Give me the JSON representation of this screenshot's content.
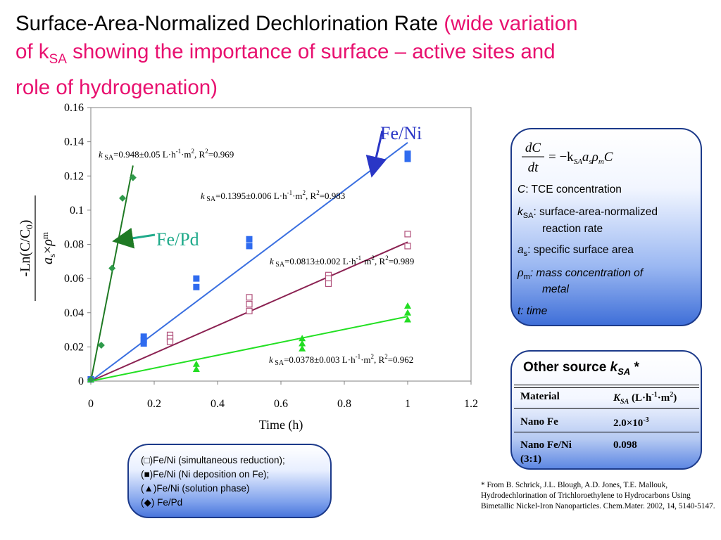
{
  "title": {
    "main": "Surface-Area-Normalized Dechlorination Rate",
    "pink_open": "(wide variation",
    "pink_of_k": "of k",
    "pink_sub": "SA",
    "pink_rest": "showing the importance of surface – active sites and",
    "pink_line3": "role of hydrogenation)"
  },
  "chart_data": {
    "type": "scatter",
    "xlabel": "Time (h)",
    "ylabel": "-Ln(C/C0) / a s×ρm",
    "xlim": [
      0,
      1.2
    ],
    "ylim": [
      0,
      0.16
    ],
    "xticks": [
      "0",
      "0.2",
      "0.4",
      "0.6",
      "0.8",
      "1",
      "1.2"
    ],
    "yticks": [
      "0",
      "0.02",
      "0.04",
      "0.06",
      "0.08",
      "0.1",
      "0.12",
      "0.14",
      "0.16"
    ],
    "grid": false,
    "series": [
      {
        "name": "Fe/Ni (simultaneous reduction)",
        "marker": "open-square",
        "color": "#b0507a",
        "line_color": "#8b2252",
        "slope": 0.0813,
        "points": [
          [
            0,
            0.001
          ],
          [
            0.25,
            0.027
          ],
          [
            0.25,
            0.025
          ],
          [
            0.25,
            0.023
          ],
          [
            0.5,
            0.049
          ],
          [
            0.5,
            0.045
          ],
          [
            0.5,
            0.041
          ],
          [
            0.75,
            0.062
          ],
          [
            0.75,
            0.06
          ],
          [
            0.75,
            0.057
          ],
          [
            1.0,
            0.086
          ],
          [
            1.0,
            0.079
          ]
        ],
        "annotation": {
          "k": "k",
          "sub": "SA",
          "text": "=0.0813±0.002 L·h",
          "sup1": "-1",
          "mid": "·m",
          "sup2": "2",
          "end": ", R",
          "sup3": "2",
          "tail": "=0.989"
        }
      },
      {
        "name": "Fe/Ni (Ni deposition on Fe)",
        "marker": "filled-square",
        "color": "#2f6bef",
        "line_color": "#3a6fe0",
        "slope": 0.1395,
        "points": [
          [
            0,
            0.001
          ],
          [
            0.167,
            0.026
          ],
          [
            0.167,
            0.024
          ],
          [
            0.167,
            0.022
          ],
          [
            0.333,
            0.06
          ],
          [
            0.333,
            0.055
          ],
          [
            0.5,
            0.083
          ],
          [
            0.5,
            0.079
          ],
          [
            1.0,
            0.133
          ],
          [
            1.0,
            0.13
          ]
        ],
        "annotation": {
          "k": "k",
          "sub": "SA",
          "text": "=0.1395±0.006 L·h",
          "sup1": "-1",
          "mid": "·m",
          "sup2": "2",
          "end": ", R",
          "sup3": "2",
          "tail": "=0.983"
        }
      },
      {
        "name": "Fe/Ni (solution phase)",
        "marker": "filled-triangle",
        "color": "#22dd22",
        "line_color": "#22e022",
        "slope": 0.0378,
        "points": [
          [
            0,
            0.001
          ],
          [
            0.333,
            0.01
          ],
          [
            0.333,
            0.007
          ],
          [
            0.667,
            0.025
          ],
          [
            0.667,
            0.022
          ],
          [
            0.667,
            0.019
          ],
          [
            1.0,
            0.044
          ],
          [
            1.0,
            0.04
          ],
          [
            1.0,
            0.036
          ]
        ],
        "annotation": {
          "k": "k",
          "sub": "SA",
          "text": "=0.0378±0.003 L·h",
          "sup1": "-1",
          "mid": "·m",
          "sup2": "2",
          "end": ", R",
          "sup3": "2",
          "tail": "=0.962"
        }
      },
      {
        "name": "Fe/Pd",
        "marker": "filled-diamond",
        "color": "#2e9a4a",
        "line_color": "#1f7a24",
        "slope": 0.948,
        "points": [
          [
            0,
            0.001
          ],
          [
            0.033,
            0.021
          ],
          [
            0.067,
            0.066
          ],
          [
            0.1,
            0.107
          ],
          [
            0.133,
            0.119
          ]
        ],
        "annotation": {
          "k": "k",
          "sub": "SA",
          "text": "=0.948±0.05 L·h",
          "sup1": "-1",
          "mid": "·m",
          "sup2": "2",
          "end": ", R",
          "sup3": "2",
          "tail": "=0.969"
        }
      }
    ],
    "callouts": [
      {
        "label": "Fe/Ni",
        "color": "#2a36c6"
      },
      {
        "label": "Fe/Pd",
        "color": "#1faa8a"
      }
    ]
  },
  "ylabel_parts": {
    "numerator": "-Ln(C/C",
    "num_sub": "0",
    "num_close": ")",
    "den_a": "a",
    "den_s": "s",
    "den_times": "×",
    "den_rho": "ρ",
    "den_m": "m"
  },
  "equation_panel": {
    "lhs_num": "dC",
    "lhs_den": "dt",
    "rhs": "= −k",
    "rhs_sub1": "SA",
    "rhs_a": "a",
    "rhs_sub2": "s",
    "rhs_rho": "ρ",
    "rhs_sub3": "m",
    "rhs_c": "C",
    "c_sym": "C",
    "c_def": ": TCE concentration",
    "k_sym": "k",
    "k_sub": "SA",
    "k_def1": ": surface-area-normalized",
    "k_def2": "reaction rate",
    "a_sym": "a",
    "a_sub": "s",
    "a_def": ": specific surface area",
    "rho_sym": "ρ",
    "rho_sub": "m",
    "rho_def1": ": mass concentration of",
    "rho_def2": "metal",
    "t_def": "t: time"
  },
  "legend": {
    "row1_sym": "□",
    "row1": ")Fe/Ni (simultaneous reduction);",
    "row2_sym": "■",
    "row2": ")Fe/Ni (Ni deposition on Fe);",
    "row3_sym": "▲",
    "row3": ")Fe/Ni (solution phase)",
    "row4_sym": "◆",
    "row4": ") Fe/Pd",
    "open": "("
  },
  "other_source": {
    "heading": "Other source",
    "heading_k": "k",
    "heading_sub": "SA",
    "heading_star": " *",
    "col1": "Material",
    "col2_k": "K",
    "col2_sub": "SA",
    "col2_unit": " (L·h",
    "col2_sup1": "-1",
    "col2_m": "·m",
    "col2_sup2": "2",
    "col2_close": ")",
    "rows": [
      {
        "material": "Nano Fe",
        "value": "2.0×10",
        "value_sup": "-3"
      },
      {
        "material": "Nano Fe/Ni",
        "material2": "(3:1)",
        "value": "0.098",
        "value_sup": ""
      }
    ]
  },
  "reference": "* From B. Schrick, J.L. Blough, A.D. Jones, T.E. Mallouk, Hydrodechlorination of Trichloroethylene to Hydrocarbons Using Bimetallic Nickel-Iron Nanoparticles. Chem.Mater. 2002, 14, 5140-5147."
}
